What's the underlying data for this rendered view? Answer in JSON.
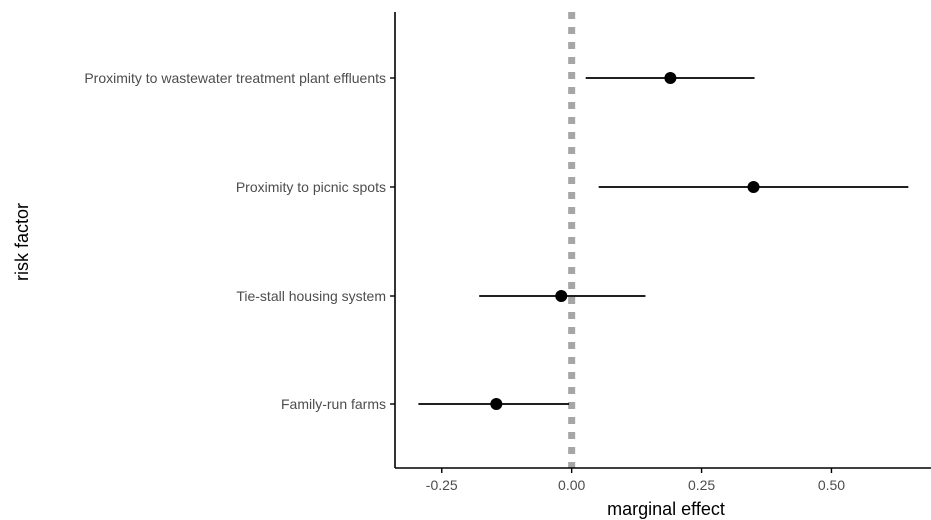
{
  "chart_data": {
    "type": "scatter",
    "subtype": "forest-plot",
    "title": "",
    "xlabel": "marginal effect",
    "ylabel": "risk factor",
    "xlim": [
      -0.34,
      0.68
    ],
    "x_ticks": [
      -0.25,
      0.0,
      0.25,
      0.5
    ],
    "x_tick_labels": [
      "-0.25",
      "0.00",
      "0.25",
      "0.50"
    ],
    "reference_line": {
      "x": 0,
      "style": "dotted",
      "color": "#a6a6a6"
    },
    "grid": false,
    "legend": "none",
    "categories": [
      "Proximity to wastewater treatment plant effluents",
      "Proximity to picnic spots",
      "Tie-stall housing system",
      "Family-run farms"
    ],
    "series": [
      {
        "estimate": [
          0.19,
          0.35,
          -0.02,
          -0.145
        ],
        "lower": [
          0.027,
          0.052,
          -0.178,
          -0.295
        ],
        "upper": [
          0.352,
          0.648,
          0.142,
          -0.005
        ]
      }
    ],
    "colors": {
      "point": "#000000",
      "errorbar": "#000000",
      "axis": "#000000",
      "tick_text": "#4d4d4d"
    }
  }
}
